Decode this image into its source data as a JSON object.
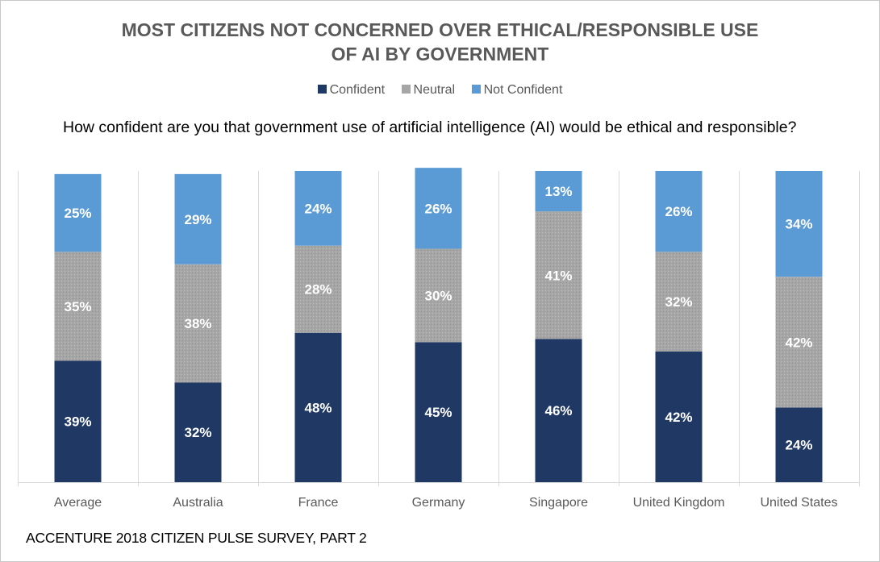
{
  "chart_data": {
    "type": "bar",
    "stacked": true,
    "title_line1": "MOST CITIZENS NOT CONCERNED OVER ETHICAL/RESPONSIBLE USE",
    "title_line2": "OF AI BY GOVERNMENT",
    "subtitle": "How confident are you that government use of artificial intelligence  (AI) would be ethical and responsible?",
    "categories": [
      "Average",
      "Australia",
      "France",
      "Germany",
      "Singapore",
      "United Kingdom",
      "United States"
    ],
    "series": [
      {
        "name": "Confident",
        "color": "#203864",
        "values": [
          39,
          32,
          48,
          45,
          46,
          42,
          24
        ]
      },
      {
        "name": "Neutral",
        "color": "#a6a6a6",
        "values": [
          35,
          38,
          28,
          30,
          41,
          32,
          42
        ]
      },
      {
        "name": "Not Confident",
        "color": "#5b9bd5",
        "values": [
          25,
          29,
          24,
          26,
          13,
          26,
          34
        ]
      }
    ],
    "value_suffix": "%",
    "legend_position": "top-center",
    "gridlines": "vertical-separators"
  },
  "footer": "ACCENTURE 2018 CITIZEN PULSE SURVEY, PART 2"
}
